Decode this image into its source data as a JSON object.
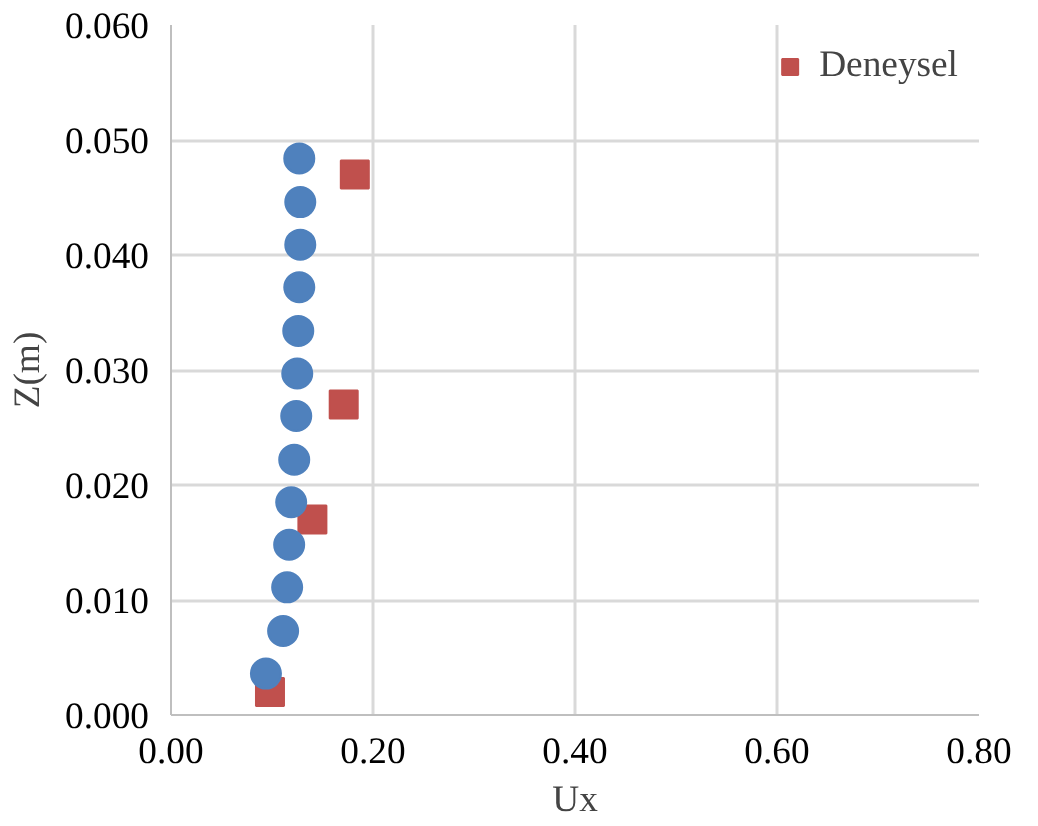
{
  "chart_data": {
    "type": "scatter",
    "xlabel": "Ux",
    "ylabel": "Z(m)",
    "xlim": [
      0,
      0.8
    ],
    "xticks": [
      {
        "value": 0,
        "label": "0.00"
      },
      {
        "value": 0.2,
        "label": "0.20"
      },
      {
        "value": 0.4,
        "label": "0.40"
      },
      {
        "value": 0.6,
        "label": "0.60"
      },
      {
        "value": 0.8,
        "label": "0.80"
      }
    ],
    "ylim": [
      0,
      0.06
    ],
    "yticks": [
      {
        "value": 0,
        "label": "0.000"
      },
      {
        "value": 0.01,
        "label": "0.010"
      },
      {
        "value": 0.02,
        "label": "0.020"
      },
      {
        "value": 0.03,
        "label": "0.030"
      },
      {
        "value": 0.04,
        "label": "0.040"
      },
      {
        "value": 0.05,
        "label": "0.050"
      },
      {
        "value": 0.06,
        "label": "0.060"
      }
    ],
    "grid": true,
    "legend": "top right",
    "series": [
      {
        "name": "Deneysel",
        "color": "#c0504d",
        "marker": "square",
        "x": [
          0.182,
          0.171,
          0.14,
          0.098
        ],
        "values": [
          0.047,
          0.027,
          0.017,
          0.002
        ]
      },
      {
        "color": "#4f81bd",
        "marker": "circle",
        "x": [
          0.127,
          0.128,
          0.128,
          0.127,
          0.126,
          0.125,
          0.124,
          0.122,
          0.119,
          0.117,
          0.115,
          0.111,
          0.094
        ],
        "values": [
          0.0484,
          0.0446,
          0.0409,
          0.0372,
          0.0334,
          0.0297,
          0.026,
          0.0222,
          0.0185,
          0.0148,
          0.0111,
          0.0073,
          0.0036
        ]
      }
    ]
  }
}
